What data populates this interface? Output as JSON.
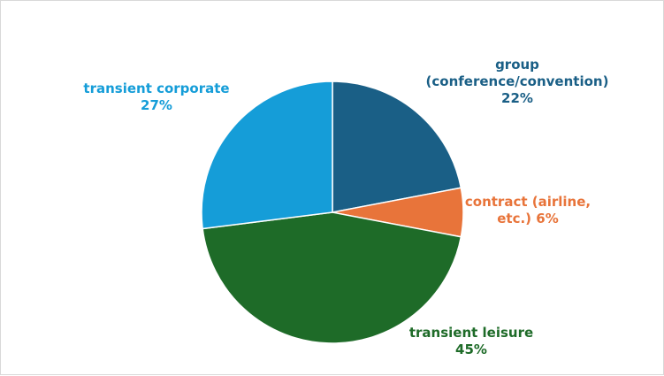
{
  "chart_data": {
    "type": "pie",
    "title": "",
    "start_angle_deg": 0,
    "direction": "clockwise",
    "legend": "none",
    "slices": [
      {
        "label_lines": [
          "group",
          "(conference/convention)"
        ],
        "pct_text": "22%",
        "value": 22,
        "color": "#1a5f86"
      },
      {
        "label_lines": [
          "contract (airline,"
        ],
        "pct_text": "etc.) 6%",
        "value": 6,
        "color": "#e8743a"
      },
      {
        "label_lines": [
          "transient leisure"
        ],
        "pct_text": "45%",
        "value": 45,
        "color": "#1e6b28"
      },
      {
        "label_lines": [
          "transient corporate"
        ],
        "pct_text": "27%",
        "value": 27,
        "color": "#159dd8"
      }
    ]
  }
}
